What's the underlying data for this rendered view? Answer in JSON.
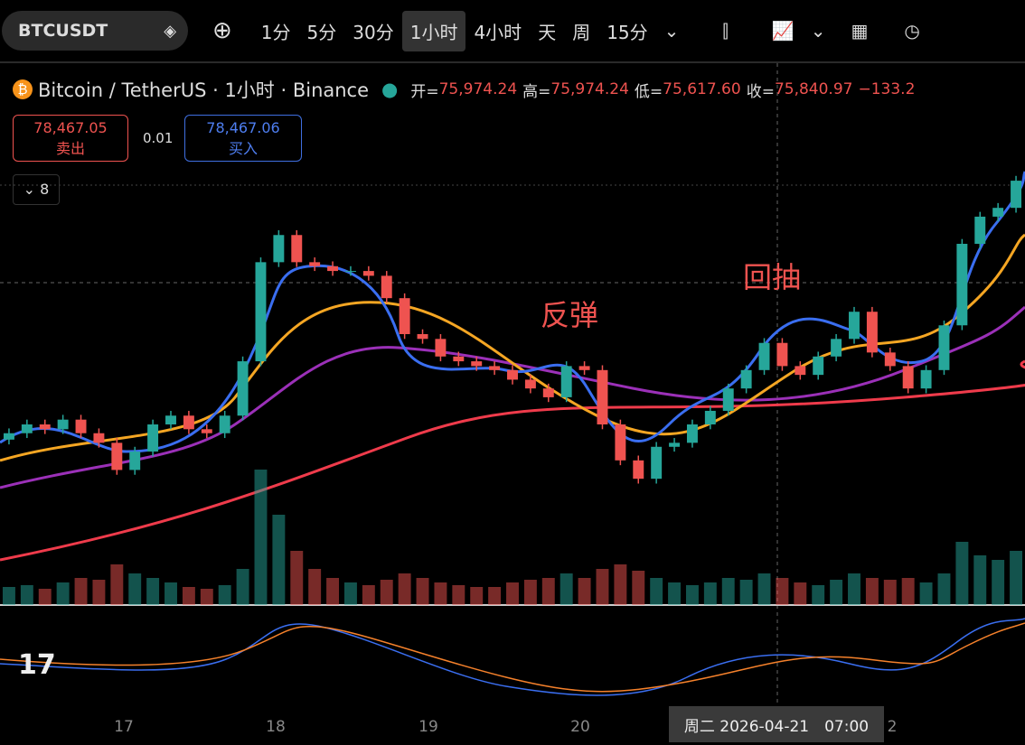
{
  "toolbar": {
    "symbol": "BTCUSDT",
    "intervals": [
      "1分",
      "5分",
      "30分",
      "1小时",
      "4小时",
      "天",
      "周",
      "15分"
    ]
  },
  "legend": {
    "title": "Bitcoin / TetherUS · 1小时 · Binance",
    "ohlc": [
      {
        "label": "开=",
        "value": "75,974.24"
      },
      {
        "label": "高=",
        "value": "75,974.24"
      },
      {
        "label": "低=",
        "value": "75,617.60"
      },
      {
        "label": "收=",
        "value": "75,840.97"
      }
    ],
    "change": "−133.2"
  },
  "trade": {
    "sell_price": "78,467.05",
    "sell": "卖出",
    "spread": "0.01",
    "buy_price": "78,467.06",
    "buy": "买入"
  },
  "indicators_count": "8",
  "chart_data": {
    "type": "candlestick",
    "ylim": [
      72750,
      79530
    ],
    "annotations": [
      "反弹",
      "回抽"
    ],
    "x_labels": [
      "17",
      "18",
      "19",
      "20",
      "2"
    ],
    "crosshair_label": "周二 2026-04-21　07:00",
    "up_color": "#26a69a",
    "down_color": "#ef5350",
    "open": [
      74820,
      74900,
      75010,
      74950,
      75070,
      74900,
      74780,
      74440,
      74670,
      75010,
      75120,
      74950,
      74900,
      75120,
      75800,
      77040,
      77380,
      77040,
      76990,
      76930,
      76930,
      76870,
      76590,
      76140,
      76080,
      75860,
      75800,
      75740,
      75690,
      75570,
      75460,
      75350,
      75740,
      75690,
      75010,
      74560,
      74330,
      74730,
      74780,
      75010,
      75180,
      75460,
      75690,
      76030,
      75740,
      75630,
      75860,
      76080,
      76420,
      75910,
      75740,
      75460,
      75690,
      76250,
      77270,
      77610,
      77720
    ],
    "high": [
      74960,
      75070,
      75070,
      75130,
      75130,
      74960,
      74840,
      74730,
      75070,
      75180,
      75180,
      75010,
      75180,
      75860,
      77100,
      77440,
      77440,
      77100,
      77050,
      76990,
      76990,
      76930,
      76650,
      76200,
      76140,
      75920,
      75860,
      75800,
      75750,
      75630,
      75520,
      75800,
      75800,
      75750,
      75070,
      74620,
      74790,
      74840,
      75070,
      75240,
      75520,
      75750,
      76090,
      76090,
      75800,
      75920,
      76140,
      76480,
      76480,
      75970,
      75800,
      75750,
      76310,
      77330,
      77670,
      77780,
      78120
    ],
    "low": [
      74760,
      74840,
      74890,
      74890,
      74840,
      74720,
      74380,
      74380,
      74610,
      74950,
      74890,
      74840,
      74840,
      75060,
      75740,
      76980,
      76980,
      76930,
      76870,
      76870,
      76810,
      76530,
      76080,
      76020,
      75800,
      75740,
      75680,
      75630,
      75510,
      75400,
      75290,
      75290,
      75630,
      74950,
      74500,
      74270,
      74270,
      74670,
      74720,
      74950,
      75120,
      75400,
      75630,
      75680,
      75570,
      75570,
      75800,
      76020,
      75850,
      75680,
      75400,
      75400,
      75630,
      76190,
      77210,
      77550,
      77660
    ],
    "close": [
      74900,
      75010,
      74950,
      75070,
      74900,
      74780,
      74440,
      74670,
      75010,
      75120,
      74950,
      74900,
      75120,
      75800,
      77040,
      77380,
      77040,
      76990,
      76930,
      76930,
      76870,
      76590,
      76140,
      76080,
      75860,
      75800,
      75740,
      75690,
      75570,
      75460,
      75350,
      75740,
      75690,
      75010,
      74560,
      74330,
      74730,
      74780,
      75010,
      75180,
      75460,
      75690,
      76030,
      75740,
      75630,
      75860,
      76080,
      76420,
      75910,
      75740,
      75460,
      75690,
      76250,
      77270,
      77610,
      77720,
      78060
    ],
    "volume": [
      20,
      22,
      18,
      25,
      30,
      28,
      45,
      35,
      30,
      25,
      20,
      18,
      22,
      40,
      150,
      100,
      60,
      40,
      30,
      25,
      22,
      28,
      35,
      30,
      25,
      22,
      20,
      20,
      25,
      28,
      30,
      35,
      30,
      40,
      45,
      38,
      30,
      25,
      22,
      25,
      30,
      28,
      35,
      30,
      25,
      22,
      28,
      35,
      30,
      28,
      30,
      25,
      35,
      70,
      55,
      50,
      60
    ]
  }
}
